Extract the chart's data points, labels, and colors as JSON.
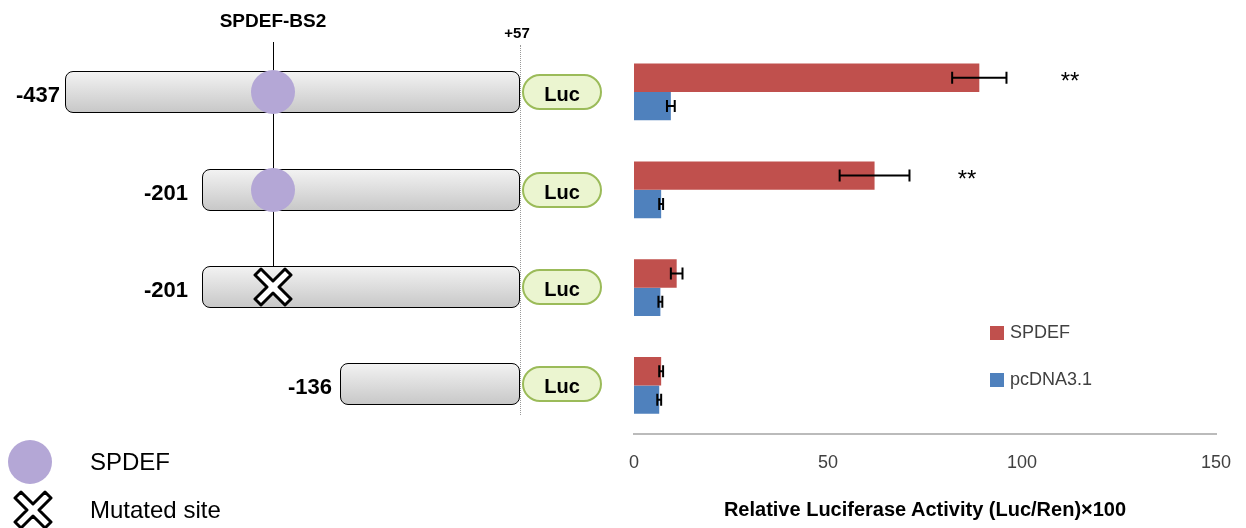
{
  "chart_data": {
    "type": "bar",
    "orientation": "horizontal",
    "categories": [
      null,
      null,
      null,
      null
    ],
    "series": [
      {
        "name": "SPDEF",
        "color": "#c0504d",
        "values": [
          89,
          62,
          11,
          7
        ],
        "errors": [
          7,
          9,
          1.5,
          0.5
        ]
      },
      {
        "name": "pcDNA3.1",
        "color": "#4f81bd",
        "values": [
          9.5,
          7,
          6.8,
          6.5
        ],
        "errors": [
          1,
          0.5,
          0.5,
          0.5
        ]
      }
    ],
    "xlim": [
      0,
      150
    ],
    "xticks": [
      0,
      50,
      100,
      150
    ],
    "xlabel": "Relative Luciferase Activity (Luc/Ren)×100",
    "tick_labels": "x",
    "grid": false,
    "legend": "bottom right",
    "annotations": [
      "SPDEF-BS2",
      "+57",
      "Luc",
      "SPDEF",
      "Mutated site",
      "-437",
      "-201",
      "-201",
      "-136",
      "**",
      "**"
    ]
  }
}
